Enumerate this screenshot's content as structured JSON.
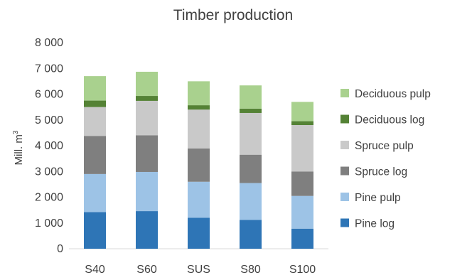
{
  "chart_data": {
    "type": "bar",
    "stacked": true,
    "title": "Timber production",
    "xlabel": "",
    "ylabel": "Mill. m",
    "ylabel_superscript": "3",
    "ylim": [
      0,
      8000
    ],
    "yticks": [
      0,
      1000,
      2000,
      3000,
      4000,
      5000,
      6000,
      7000,
      8000
    ],
    "ytick_labels": [
      "0",
      "1 000",
      "2 000",
      "3 000",
      "4 000",
      "5 000",
      "6 000",
      "7 000",
      "8 000"
    ],
    "categories": [
      "S40",
      "S60",
      "SUS",
      "S80",
      "S100"
    ],
    "series": [
      {
        "name": "Pine log",
        "color": "#2e75b6",
        "values": [
          1420,
          1460,
          1200,
          1120,
          780
        ]
      },
      {
        "name": "Pine pulp",
        "color": "#9dc3e6",
        "values": [
          1480,
          1520,
          1400,
          1430,
          1270
        ]
      },
      {
        "name": "Spruce log",
        "color": "#7f7f7f",
        "values": [
          1480,
          1420,
          1290,
          1100,
          950
        ]
      },
      {
        "name": "Spruce pulp",
        "color": "#c9c9c9",
        "values": [
          1120,
          1340,
          1510,
          1620,
          1800
        ]
      },
      {
        "name": "Deciduous log",
        "color": "#548235",
        "values": [
          250,
          190,
          170,
          170,
          150
        ]
      },
      {
        "name": "Deciduous pulp",
        "color": "#a9d18e",
        "values": [
          950,
          940,
          930,
          900,
          750
        ]
      }
    ],
    "grid": false,
    "legend_position": "right",
    "legend_order": "reverse"
  }
}
